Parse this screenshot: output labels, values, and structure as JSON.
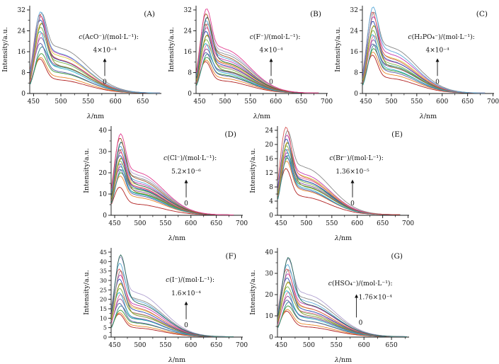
{
  "figure": {
    "description": "Fluorescence emission spectra panels for anion titrations",
    "xlabel": "λ/nm",
    "ylabel": "Intensity/a.u.",
    "palette": [
      "#b22222",
      "#e8872a",
      "#3a9a3a",
      "#2e8b8b",
      "#5a5aa8",
      "#8a4f9e",
      "#e86ca0",
      "#29b2c8",
      "#7ab648",
      "#d8c838",
      "#8a8a28",
      "#2848b0",
      "#c23ab0",
      "#888888",
      "#d85858",
      "#58a8d8",
      "#b0a0d0",
      "#286858",
      "#a05828",
      "#e23a8e"
    ]
  },
  "chart_data": [
    {
      "id": "A",
      "type": "line",
      "panel_letter": "(A)",
      "xlabel": "λ/nm",
      "ylabel": "Intensity/a.u.",
      "annotation": {
        "label": "c(AcO⁻)/(mol·L⁻¹):",
        "from": "0",
        "to": "4×10⁻⁴",
        "arrow": "up"
      },
      "xlim": [
        443,
        684
      ],
      "xticks": [
        450,
        500,
        550,
        600,
        650
      ],
      "ylim": [
        0,
        32
      ],
      "yticks": [
        0,
        8,
        16,
        24,
        32
      ],
      "peak_wavelength_nm": 462,
      "data_end_nm": 682,
      "series_peaks": [
        13,
        13.4,
        14.6,
        16.8,
        18.8,
        20.6,
        22,
        23.4,
        24.6,
        25.7,
        26.6,
        27.5,
        28.3,
        29,
        29.6,
        30.2
      ]
    },
    {
      "id": "B",
      "type": "line",
      "panel_letter": "(B)",
      "xlabel": "λ/nm",
      "ylabel": "Intensity/a.u.",
      "annotation": {
        "label": "c(F⁻)/(mol·L⁻¹):",
        "from": "0",
        "to": "4×10⁻⁴",
        "arrow": "up"
      },
      "xlim": [
        443,
        702
      ],
      "xticks": [
        450,
        500,
        550,
        600,
        650,
        700
      ],
      "ylim": [
        0,
        32
      ],
      "yticks": [
        0,
        8,
        16,
        24,
        32
      ],
      "peak_wavelength_nm": 462,
      "data_end_nm": 685,
      "series_peaks": [
        12,
        12.4,
        13.2,
        14.2,
        15.3,
        16.4,
        17.6,
        18.8,
        20,
        21.1,
        22.2,
        23.2,
        24.2,
        25.1,
        26,
        26.9,
        27.8,
        28.7,
        29.6,
        31
      ]
    },
    {
      "id": "C",
      "type": "line",
      "panel_letter": "(C)",
      "xlabel": "λ/nm",
      "ylabel": "Intensity/a.u.",
      "annotation": {
        "label": "c(H₂PO₄⁻)/(mol·L⁻¹):",
        "from": "0",
        "to": "4×10⁻⁴",
        "arrow": "up"
      },
      "xlim": [
        443,
        702
      ],
      "xticks": [
        450,
        500,
        550,
        600,
        650,
        700
      ],
      "ylim": [
        0,
        32
      ],
      "yticks": [
        0,
        8,
        16,
        24,
        32
      ],
      "peak_wavelength_nm": 463,
      "data_end_nm": 685,
      "series_peaks": [
        14.5,
        15.4,
        16.4,
        17.5,
        18.6,
        19.8,
        21,
        22.2,
        23.4,
        24.6,
        25.8,
        27,
        28.2,
        29.4,
        30.6,
        32
      ]
    },
    {
      "id": "D",
      "type": "line",
      "panel_letter": "(D)",
      "xlabel": "λ/nm",
      "ylabel": "Intensity/a.u.",
      "annotation": {
        "label": "c(Cl⁻)/(mol·L⁻¹):",
        "from": "0",
        "to": "5.2×10⁻⁶",
        "arrow": "up"
      },
      "xlim": [
        443,
        702
      ],
      "xticks": [
        450,
        500,
        550,
        600,
        650,
        700
      ],
      "ylim": [
        0,
        40
      ],
      "yticks": [
        0,
        10,
        20,
        30,
        40
      ],
      "peak_wavelength_nm": 460,
      "data_end_nm": 686,
      "series_peaks": [
        13,
        18,
        19.2,
        20.2,
        21.2,
        22.1,
        23,
        23.9,
        24.8,
        25.7,
        26.6,
        27.5,
        28.4,
        29.3,
        30.3,
        31.4,
        32.6,
        34,
        35.3,
        36.6
      ]
    },
    {
      "id": "E",
      "type": "line",
      "panel_letter": "(E)",
      "xlabel": "λ/nm",
      "ylabel": "Intensity/a.u.",
      "annotation": {
        "label": "c(Br⁻)/(mol·L⁻¹):",
        "from": "0",
        "to": "1.36×10⁻⁵",
        "arrow": "up"
      },
      "xlim": [
        443,
        702
      ],
      "xticks": [
        450,
        500,
        550,
        600,
        650,
        700
      ],
      "ylim": [
        0,
        24
      ],
      "yticks": [
        0,
        4,
        8,
        12,
        16,
        20,
        24
      ],
      "peak_wavelength_nm": 460,
      "data_end_nm": 686,
      "series_peaks": [
        13,
        14.9,
        15.4,
        15.9,
        16.4,
        17,
        17.6,
        18.3,
        19,
        19.6,
        20.3,
        21,
        21.7,
        22.5,
        24.4
      ]
    },
    {
      "id": "F",
      "type": "line",
      "panel_letter": "(F)",
      "xlabel": "λ/nm",
      "ylabel": "Intensity/a.u.",
      "annotation": {
        "label": "c(I⁻)/(mol·L⁻¹):",
        "from": "0",
        "to": "1.6×10⁻⁴",
        "arrow": "up"
      },
      "xlim": [
        443,
        702
      ],
      "xticks": [
        450,
        500,
        550,
        600,
        650,
        700
      ],
      "ylim": [
        0,
        45
      ],
      "yticks": [
        0,
        5,
        10,
        15,
        20,
        25,
        30,
        35,
        40,
        45
      ],
      "peak_wavelength_nm": 459,
      "data_end_nm": 684,
      "series_peaks": [
        12,
        12.5,
        13.6,
        15.5,
        17.5,
        19.5,
        21.4,
        23.2,
        25,
        26.7,
        28.4,
        30,
        31.6,
        33.2,
        35.4,
        37.8,
        40.3,
        43
      ]
    },
    {
      "id": "G",
      "type": "line",
      "panel_letter": "(G)",
      "xlabel": "λ/nm",
      "ylabel": "Intensity/a.u.",
      "annotation": {
        "label": "c(HSO₄⁻)/(mol·L⁻¹):",
        "from": "0",
        "to": "1.76×10⁻⁴",
        "arrow": "up-left"
      },
      "xlim": [
        443,
        682
      ],
      "xticks": [
        450,
        500,
        550,
        600,
        650
      ],
      "ylim": [
        0,
        40
      ],
      "yticks": [
        0,
        10,
        20,
        30,
        40
      ],
      "peak_wavelength_nm": 460,
      "data_end_nm": 679,
      "series_peaks": [
        12,
        12.6,
        14,
        15.5,
        17,
        18.5,
        20,
        21.5,
        23,
        24.4,
        25.8,
        27.2,
        28.6,
        30,
        31.5,
        33,
        35,
        37
      ]
    }
  ]
}
